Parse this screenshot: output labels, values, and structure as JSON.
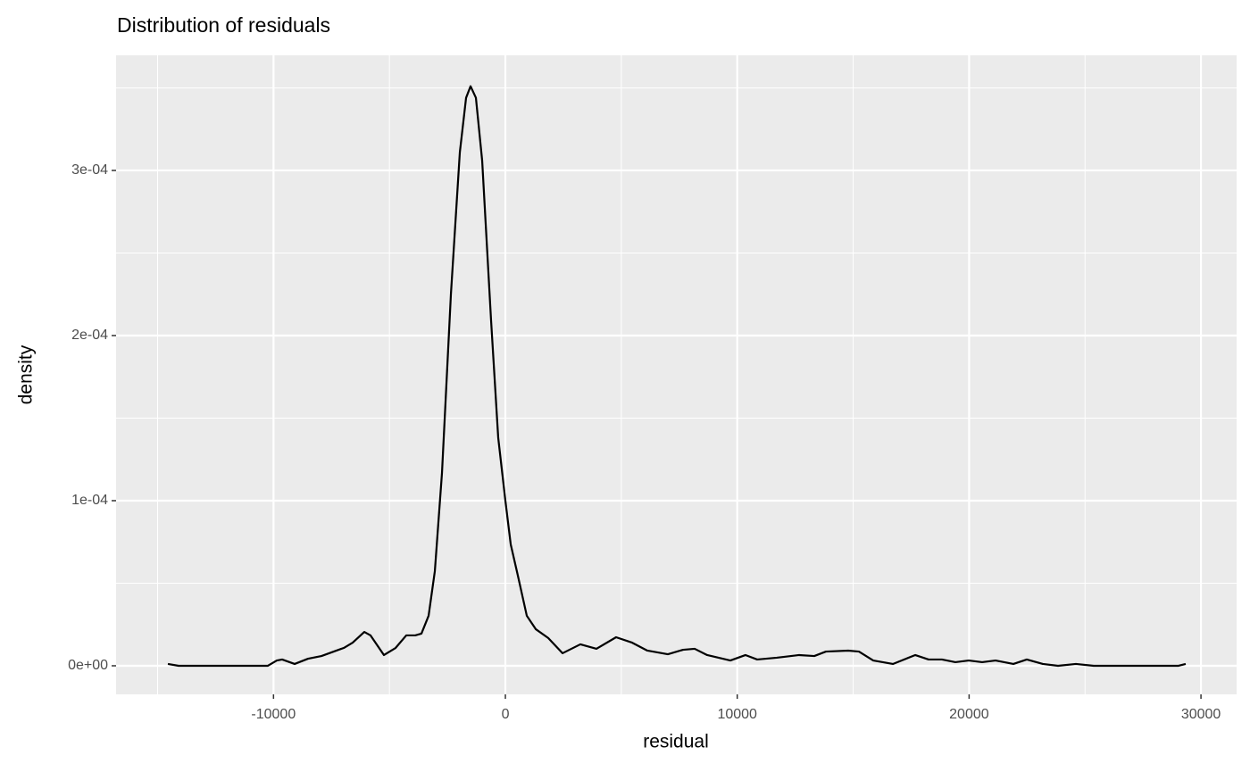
{
  "chart_data": {
    "type": "line",
    "title": "Distribution of residuals",
    "x_label": "residual",
    "y_label": "density",
    "x": [
      -14555,
      -14093,
      -10243,
      -9858,
      -9627,
      -9088,
      -8510,
      -7932,
      -6970,
      -6585,
      -6084,
      -5815,
      -5237,
      -4736,
      -4274,
      -3889,
      -3620,
      -3311,
      -3042,
      -2734,
      -2349,
      -1964,
      -1694,
      -1502,
      -1271,
      -1001,
      -616,
      -308,
      0,
      231,
      539,
      924,
      1309,
      1848,
      2464,
      3234,
      3928,
      4775,
      5468,
      6122,
      7008,
      7663,
      8163,
      8702,
      9703,
      10358,
      10859,
      11706,
      12669,
      13323,
      13824,
      14787,
      15249,
      15865,
      16712,
      17674,
      18252,
      18830,
      19407,
      19985,
      20562,
      21140,
      21910,
      22488,
      23181,
      23835,
      24605,
      25375,
      29033,
      29341
    ],
    "series": [
      {
        "color": "#000000",
        "values": [
          1.1e-06,
          0,
          0,
          3.2e-06,
          3.8e-06,
          1.1e-06,
          4.3e-06,
          5.9e-06,
          1.08e-05,
          1.4e-05,
          2.05e-05,
          1.84e-05,
          6.5e-06,
          1.08e-05,
          1.84e-05,
          1.84e-05,
          1.95e-05,
          3.03e-05,
          5.73e-05,
          0.0001168,
          0.000225,
          0.000311,
          0.000344,
          0.000351,
          0.000344,
          0.000306,
          0.000209,
          0.000138,
          0.0001,
          7.35e-05,
          5.46e-05,
          3.03e-05,
          2.22e-05,
          1.68e-05,
          7.6e-06,
          1.3e-05,
          1.03e-05,
          1.73e-05,
          1.4e-05,
          9.2e-06,
          7e-06,
          9.7e-06,
          1.03e-05,
          6.5e-06,
          3.2e-06,
          6.5e-06,
          3.8e-06,
          4.9e-06,
          6.5e-06,
          5.9e-06,
          8.6e-06,
          9.2e-06,
          8.6e-06,
          3.2e-06,
          1.1e-06,
          6.5e-06,
          3.8e-06,
          3.8e-06,
          2.2e-06,
          3.2e-06,
          2.2e-06,
          3.2e-06,
          1.1e-06,
          3.8e-06,
          1.1e-06,
          0,
          1.1e-06,
          0,
          0,
          1.1e-06
        ]
      }
    ],
    "xlim": [
      -16790,
      31537
    ],
    "ylim": [
      -1.73e-05,
      0.0003697
    ],
    "xticks": [
      -10000,
      0,
      10000,
      20000,
      30000
    ],
    "xminor": [
      -15000,
      -5000,
      5000,
      15000,
      25000
    ],
    "yticks": [
      {
        "value": 0,
        "label": "0e+00"
      },
      {
        "value": 0.0001,
        "label": "1e-04"
      },
      {
        "value": 0.0002,
        "label": "2e-04"
      },
      {
        "value": 0.0003,
        "label": "3e-04"
      }
    ],
    "yminor": [
      5e-05,
      0.00015,
      0.00025,
      0.00035
    ],
    "grid": true,
    "background": "#ebebeb"
  }
}
